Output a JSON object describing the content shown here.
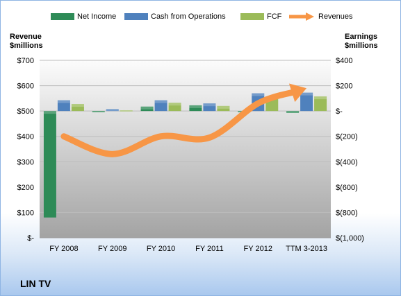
{
  "company": "LIN TV",
  "chart_data": {
    "type": "bar",
    "categories": [
      "FY 2008",
      "FY 2009",
      "FY 2010",
      "FY 2011",
      "FY 2012",
      "TTM 3-2013"
    ],
    "left_axis": {
      "label_line1": "Revenue",
      "label_line2": "$millions",
      "ylim": [
        0,
        700
      ],
      "ticks": [
        0,
        100,
        200,
        300,
        400,
        500,
        600,
        700
      ],
      "tick_labels": [
        "$-",
        "$100",
        "$200",
        "$300",
        "$400",
        "$500",
        "$600",
        "$700"
      ]
    },
    "right_axis": {
      "label_line1": "Earnings",
      "label_line2": "$millions",
      "ylim": [
        -1000,
        400
      ],
      "ticks": [
        -1000,
        -800,
        -600,
        -400,
        -200,
        0,
        200,
        400
      ],
      "tick_labels": [
        "$(1,000)",
        "$(800)",
        "$(600)",
        "$(400)",
        "$(200)",
        "$-",
        "$200",
        "$400"
      ]
    },
    "series": [
      {
        "name": "Net Income",
        "axis": "right",
        "kind": "bar",
        "color": "#2e8b57",
        "values": [
          -840,
          -10,
          35,
          45,
          -10,
          -15
        ]
      },
      {
        "name": "Cash from Operations",
        "axis": "right",
        "kind": "bar",
        "color": "#4f81bd",
        "values": [
          85,
          15,
          85,
          60,
          140,
          145
        ]
      },
      {
        "name": "FCF",
        "axis": "right",
        "kind": "bar",
        "color": "#9bbb59",
        "values": [
          55,
          5,
          65,
          40,
          115,
          115
        ]
      },
      {
        "name": "Revenues",
        "axis": "left",
        "kind": "line",
        "color": "#f79646",
        "values": [
          400,
          330,
          400,
          395,
          530,
          590
        ]
      }
    ],
    "grid": true,
    "legend_position": "top"
  }
}
